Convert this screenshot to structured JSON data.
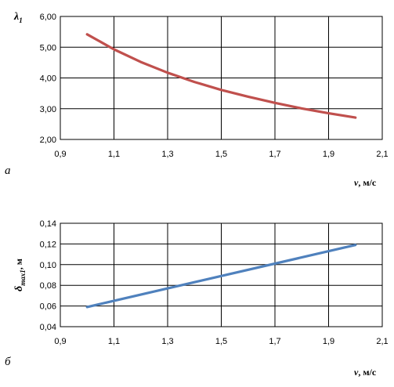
{
  "chart_data": [
    {
      "type": "line",
      "panel_letter": "a",
      "ylabel_main": "λ",
      "ylabel_sub": "1",
      "xlabel_var": "v",
      "xlabel_unit": ", м/с",
      "xlim": [
        0.9,
        2.1
      ],
      "ylim": [
        2.0,
        6.0
      ],
      "xticks": [
        "0,9",
        "1,1",
        "1,3",
        "1,5",
        "1,7",
        "1,9",
        "2,1"
      ],
      "xtick_values": [
        0.9,
        1.1,
        1.3,
        1.5,
        1.7,
        1.9,
        2.1
      ],
      "yticks": [
        "2,00",
        "3,00",
        "4,00",
        "5,00",
        "6,00"
      ],
      "ytick_values": [
        2.0,
        3.0,
        4.0,
        5.0,
        6.0
      ],
      "grid": true,
      "color": "#c0504d",
      "series": [
        {
          "x": [
            1.0,
            1.1,
            1.2,
            1.3,
            1.4,
            1.5,
            1.6,
            1.7,
            1.8,
            1.9,
            2.0
          ],
          "values": [
            5.42,
            4.93,
            4.52,
            4.17,
            3.87,
            3.61,
            3.39,
            3.19,
            3.01,
            2.85,
            2.71
          ]
        }
      ]
    },
    {
      "type": "line",
      "panel_letter": "б",
      "ylabel_main": "δ",
      "ylabel_sub": "max1",
      "ylabel_unit": ", м",
      "xlabel_var": "v",
      "xlabel_unit": ", м/с",
      "xlim": [
        0.9,
        2.1
      ],
      "ylim": [
        0.04,
        0.14
      ],
      "xticks": [
        "0,9",
        "1,1",
        "1,3",
        "1,5",
        "1,7",
        "1,9",
        "2,1"
      ],
      "xtick_values": [
        0.9,
        1.1,
        1.3,
        1.5,
        1.7,
        1.9,
        2.1
      ],
      "yticks": [
        "0,04",
        "0,06",
        "0,08",
        "0,10",
        "0,12",
        "0,14"
      ],
      "ytick_values": [
        0.04,
        0.06,
        0.08,
        0.1,
        0.12,
        0.14
      ],
      "grid": true,
      "color": "#4f81bd",
      "series": [
        {
          "x": [
            1.0,
            2.0
          ],
          "values": [
            0.059,
            0.119
          ]
        }
      ]
    }
  ]
}
